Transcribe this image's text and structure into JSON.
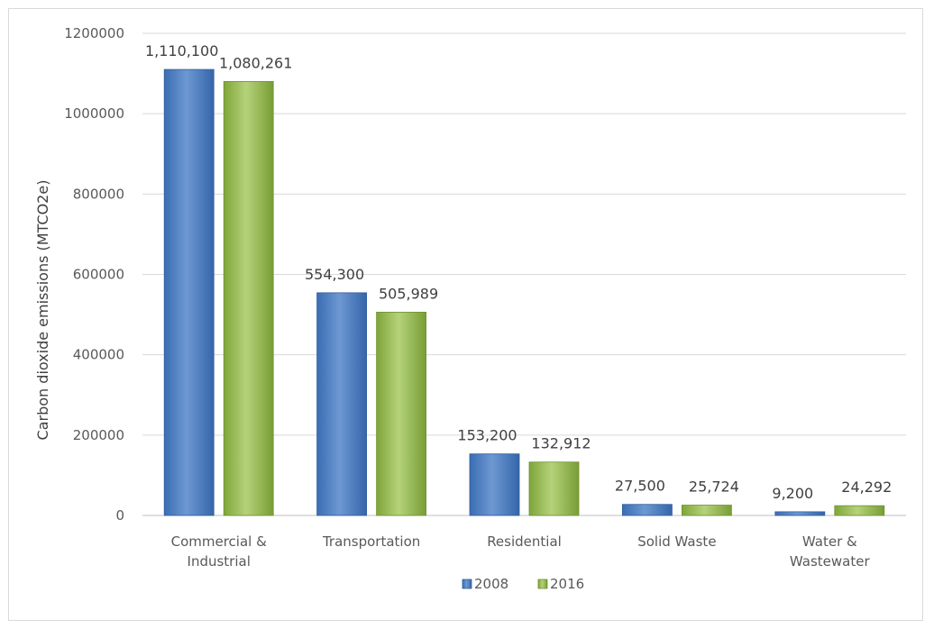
{
  "chart_data": {
    "type": "bar",
    "title": "",
    "xlabel": "",
    "ylabel": "Carbon dioxide emissions (MTCO2e)",
    "ylim": [
      0,
      1200000
    ],
    "yticks": [
      "1200000",
      "1000000",
      "800000",
      "600000",
      "400000",
      "200000",
      "0"
    ],
    "grid": true,
    "legend_position": "bottom",
    "categories": [
      [
        "Commercial &",
        "Industrial"
      ],
      [
        "Transportation"
      ],
      [
        "Residential"
      ],
      [
        "Solid Waste"
      ],
      [
        "Water &",
        "Wastewater"
      ]
    ],
    "series": [
      {
        "name": "2008",
        "color": "#4f81bd",
        "values": [
          1110100,
          554300,
          153200,
          27500,
          9200
        ],
        "labels": [
          "1,110,100",
          "554,300",
          "153,200",
          "27,500",
          "9,200"
        ]
      },
      {
        "name": "2016",
        "color": "#9bbb59",
        "values": [
          1080261,
          505989,
          132912,
          25724,
          24292
        ],
        "labels": [
          "1,080,261",
          "505,989",
          "132,912",
          "25,724",
          "24,292"
        ]
      }
    ]
  }
}
